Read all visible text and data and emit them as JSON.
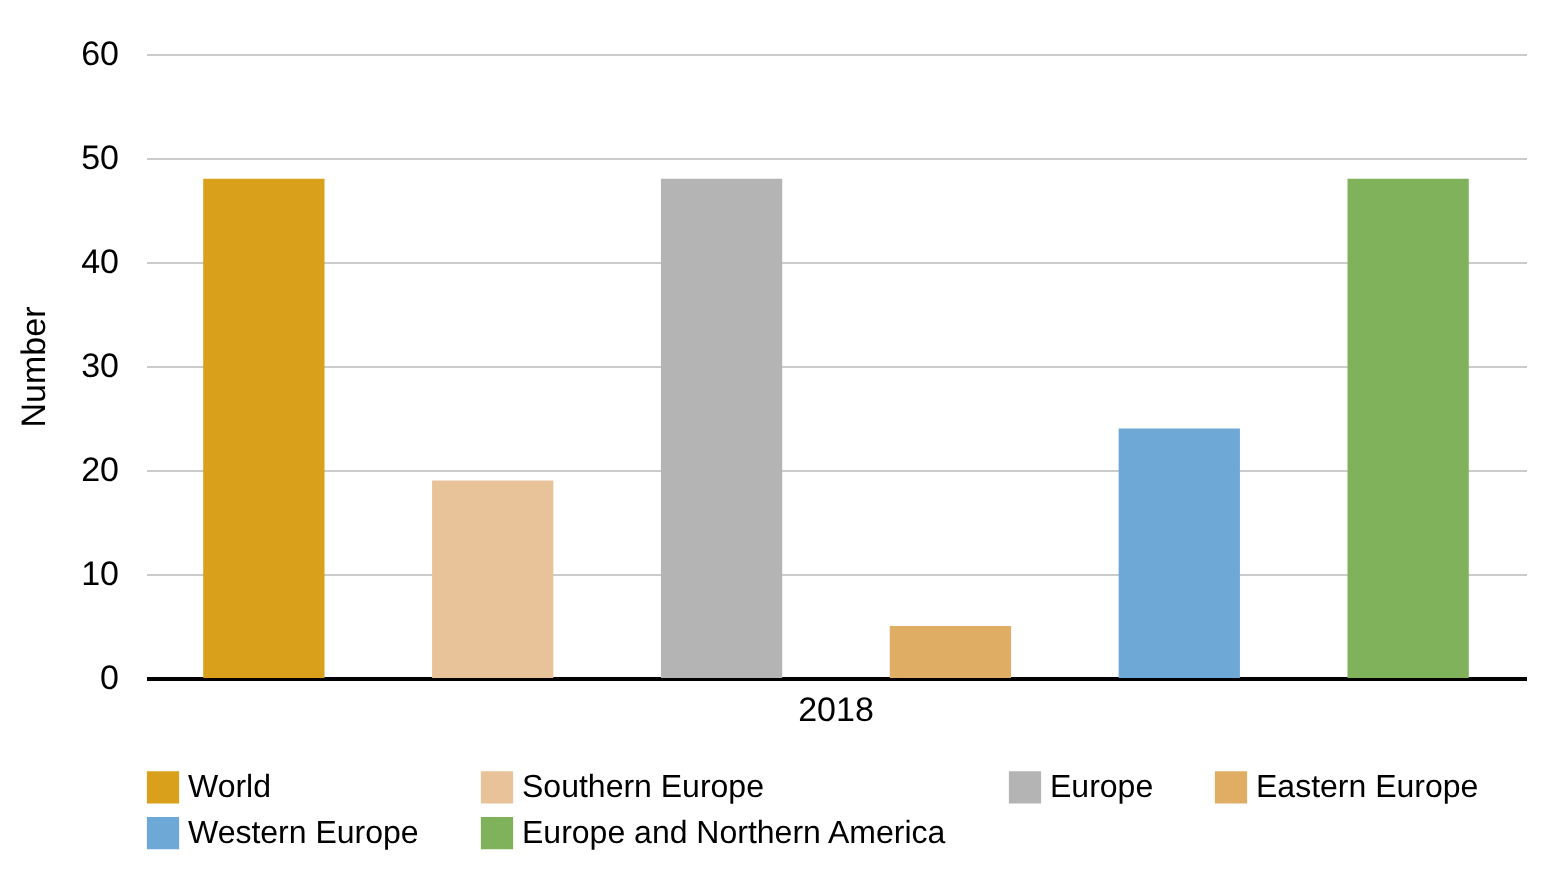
{
  "chart_data": {
    "type": "bar",
    "ylabel": "Number",
    "categories": [
      "2018"
    ],
    "series": [
      {
        "name": "World",
        "color": "#d9a01b",
        "values": [
          48
        ]
      },
      {
        "name": "Southern Europe",
        "color": "#e8c39a",
        "values": [
          19
        ]
      },
      {
        "name": "Europe",
        "color": "#b4b4b4",
        "values": [
          48
        ]
      },
      {
        "name": "Eastern Europe",
        "color": "#e0ad64",
        "values": [
          5
        ]
      },
      {
        "name": "Western Europe",
        "color": "#6ea8d6",
        "values": [
          24
        ]
      },
      {
        "name": "Europe and Northern America",
        "color": "#80b15b",
        "values": [
          48
        ]
      }
    ],
    "ylim": [
      0,
      60
    ],
    "yticks": [
      0,
      10,
      20,
      30,
      40,
      50,
      60
    ],
    "grid": "y",
    "legend": "bottom"
  }
}
